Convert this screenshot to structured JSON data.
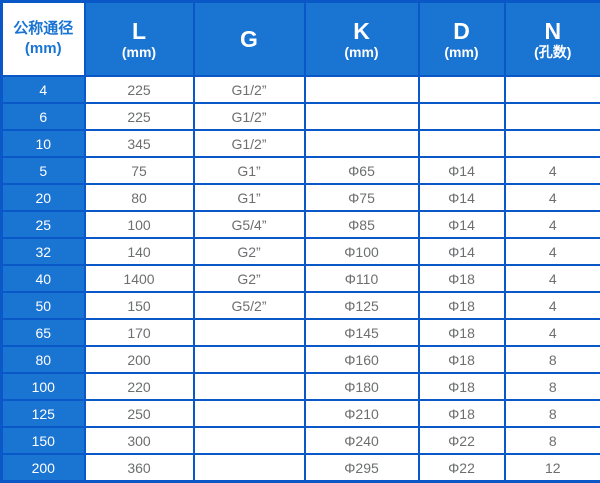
{
  "colors": {
    "header_bg": "#1a74d2",
    "label_bg": "#1a74d2",
    "border": "#0a58c8",
    "header_text": "#ffffff",
    "corner_text": "#1a74d2",
    "data_text": "#6d6e70"
  },
  "table": {
    "columns": [
      {
        "title": "公称通径",
        "subtitle": "(mm)"
      },
      {
        "title": "L",
        "subtitle": "(mm)"
      },
      {
        "title": "G",
        "subtitle": ""
      },
      {
        "title": "K",
        "subtitle": "(mm)"
      },
      {
        "title": "D",
        "subtitle": "(mm)"
      },
      {
        "title": "N",
        "subtitle": "(孔数)"
      }
    ],
    "rows": [
      {
        "dn": "4",
        "L": "225",
        "G": "G1/2”",
        "K": "",
        "D": "",
        "N": ""
      },
      {
        "dn": "6",
        "L": "225",
        "G": "G1/2”",
        "K": "",
        "D": "",
        "N": ""
      },
      {
        "dn": "10",
        "L": "345",
        "G": "G1/2”",
        "K": "",
        "D": "",
        "N": ""
      },
      {
        "dn": "5",
        "L": "75",
        "G": "G1”",
        "K": "Φ65",
        "D": "Φ14",
        "N": "4"
      },
      {
        "dn": "20",
        "L": "80",
        "G": "G1”",
        "K": "Φ75",
        "D": "Φ14",
        "N": "4"
      },
      {
        "dn": "25",
        "L": "100",
        "G": "G5/4”",
        "K": "Φ85",
        "D": "Φ14",
        "N": "4"
      },
      {
        "dn": "32",
        "L": "140",
        "G": "G2”",
        "K": "Φ100",
        "D": "Φ14",
        "N": "4"
      },
      {
        "dn": "40",
        "L": "1400",
        "G": "G2”",
        "K": "Φ110",
        "D": "Φ18",
        "N": "4"
      },
      {
        "dn": "50",
        "L": "150",
        "G": "G5/2”",
        "K": "Φ125",
        "D": "Φ18",
        "N": "4"
      },
      {
        "dn": "65",
        "L": "170",
        "G": "",
        "K": "Φ145",
        "D": "Φ18",
        "N": "4"
      },
      {
        "dn": "80",
        "L": "200",
        "G": "",
        "K": "Φ160",
        "D": "Φ18",
        "N": "8"
      },
      {
        "dn": "100",
        "L": "220",
        "G": "",
        "K": "Φ180",
        "D": "Φ18",
        "N": "8"
      },
      {
        "dn": "125",
        "L": "250",
        "G": "",
        "K": "Φ210",
        "D": "Φ18",
        "N": "8"
      },
      {
        "dn": "150",
        "L": "300",
        "G": "",
        "K": "Φ240",
        "D": "Φ22",
        "N": "8"
      },
      {
        "dn": "200",
        "L": "360",
        "G": "",
        "K": "Φ295",
        "D": "Φ22",
        "N": "12"
      }
    ]
  },
  "chart_data": {
    "type": "table",
    "title": "",
    "columns": [
      "公称通径 (mm)",
      "L (mm)",
      "G",
      "K (mm)",
      "D (mm)",
      "N (孔数)"
    ],
    "rows": [
      [
        "4",
        "225",
        "G1/2”",
        "",
        "",
        ""
      ],
      [
        "6",
        "225",
        "G1/2”",
        "",
        "",
        ""
      ],
      [
        "10",
        "345",
        "G1/2”",
        "",
        "",
        ""
      ],
      [
        "5",
        "75",
        "G1”",
        "Φ65",
        "Φ14",
        "4"
      ],
      [
        "20",
        "80",
        "G1”",
        "Φ75",
        "Φ14",
        "4"
      ],
      [
        "25",
        "100",
        "G5/4”",
        "Φ85",
        "Φ14",
        "4"
      ],
      [
        "32",
        "140",
        "G2”",
        "Φ100",
        "Φ14",
        "4"
      ],
      [
        "40",
        "1400",
        "G2”",
        "Φ110",
        "Φ18",
        "4"
      ],
      [
        "50",
        "150",
        "G5/2”",
        "Φ125",
        "Φ18",
        "4"
      ],
      [
        "65",
        "170",
        "",
        "Φ145",
        "Φ18",
        "4"
      ],
      [
        "80",
        "200",
        "",
        "Φ160",
        "Φ18",
        "8"
      ],
      [
        "100",
        "220",
        "",
        "Φ180",
        "Φ18",
        "8"
      ],
      [
        "125",
        "250",
        "",
        "Φ210",
        "Φ18",
        "8"
      ],
      [
        "150",
        "300",
        "",
        "Φ240",
        "Φ22",
        "8"
      ],
      [
        "200",
        "360",
        "",
        "Φ295",
        "Φ22",
        "12"
      ]
    ]
  }
}
